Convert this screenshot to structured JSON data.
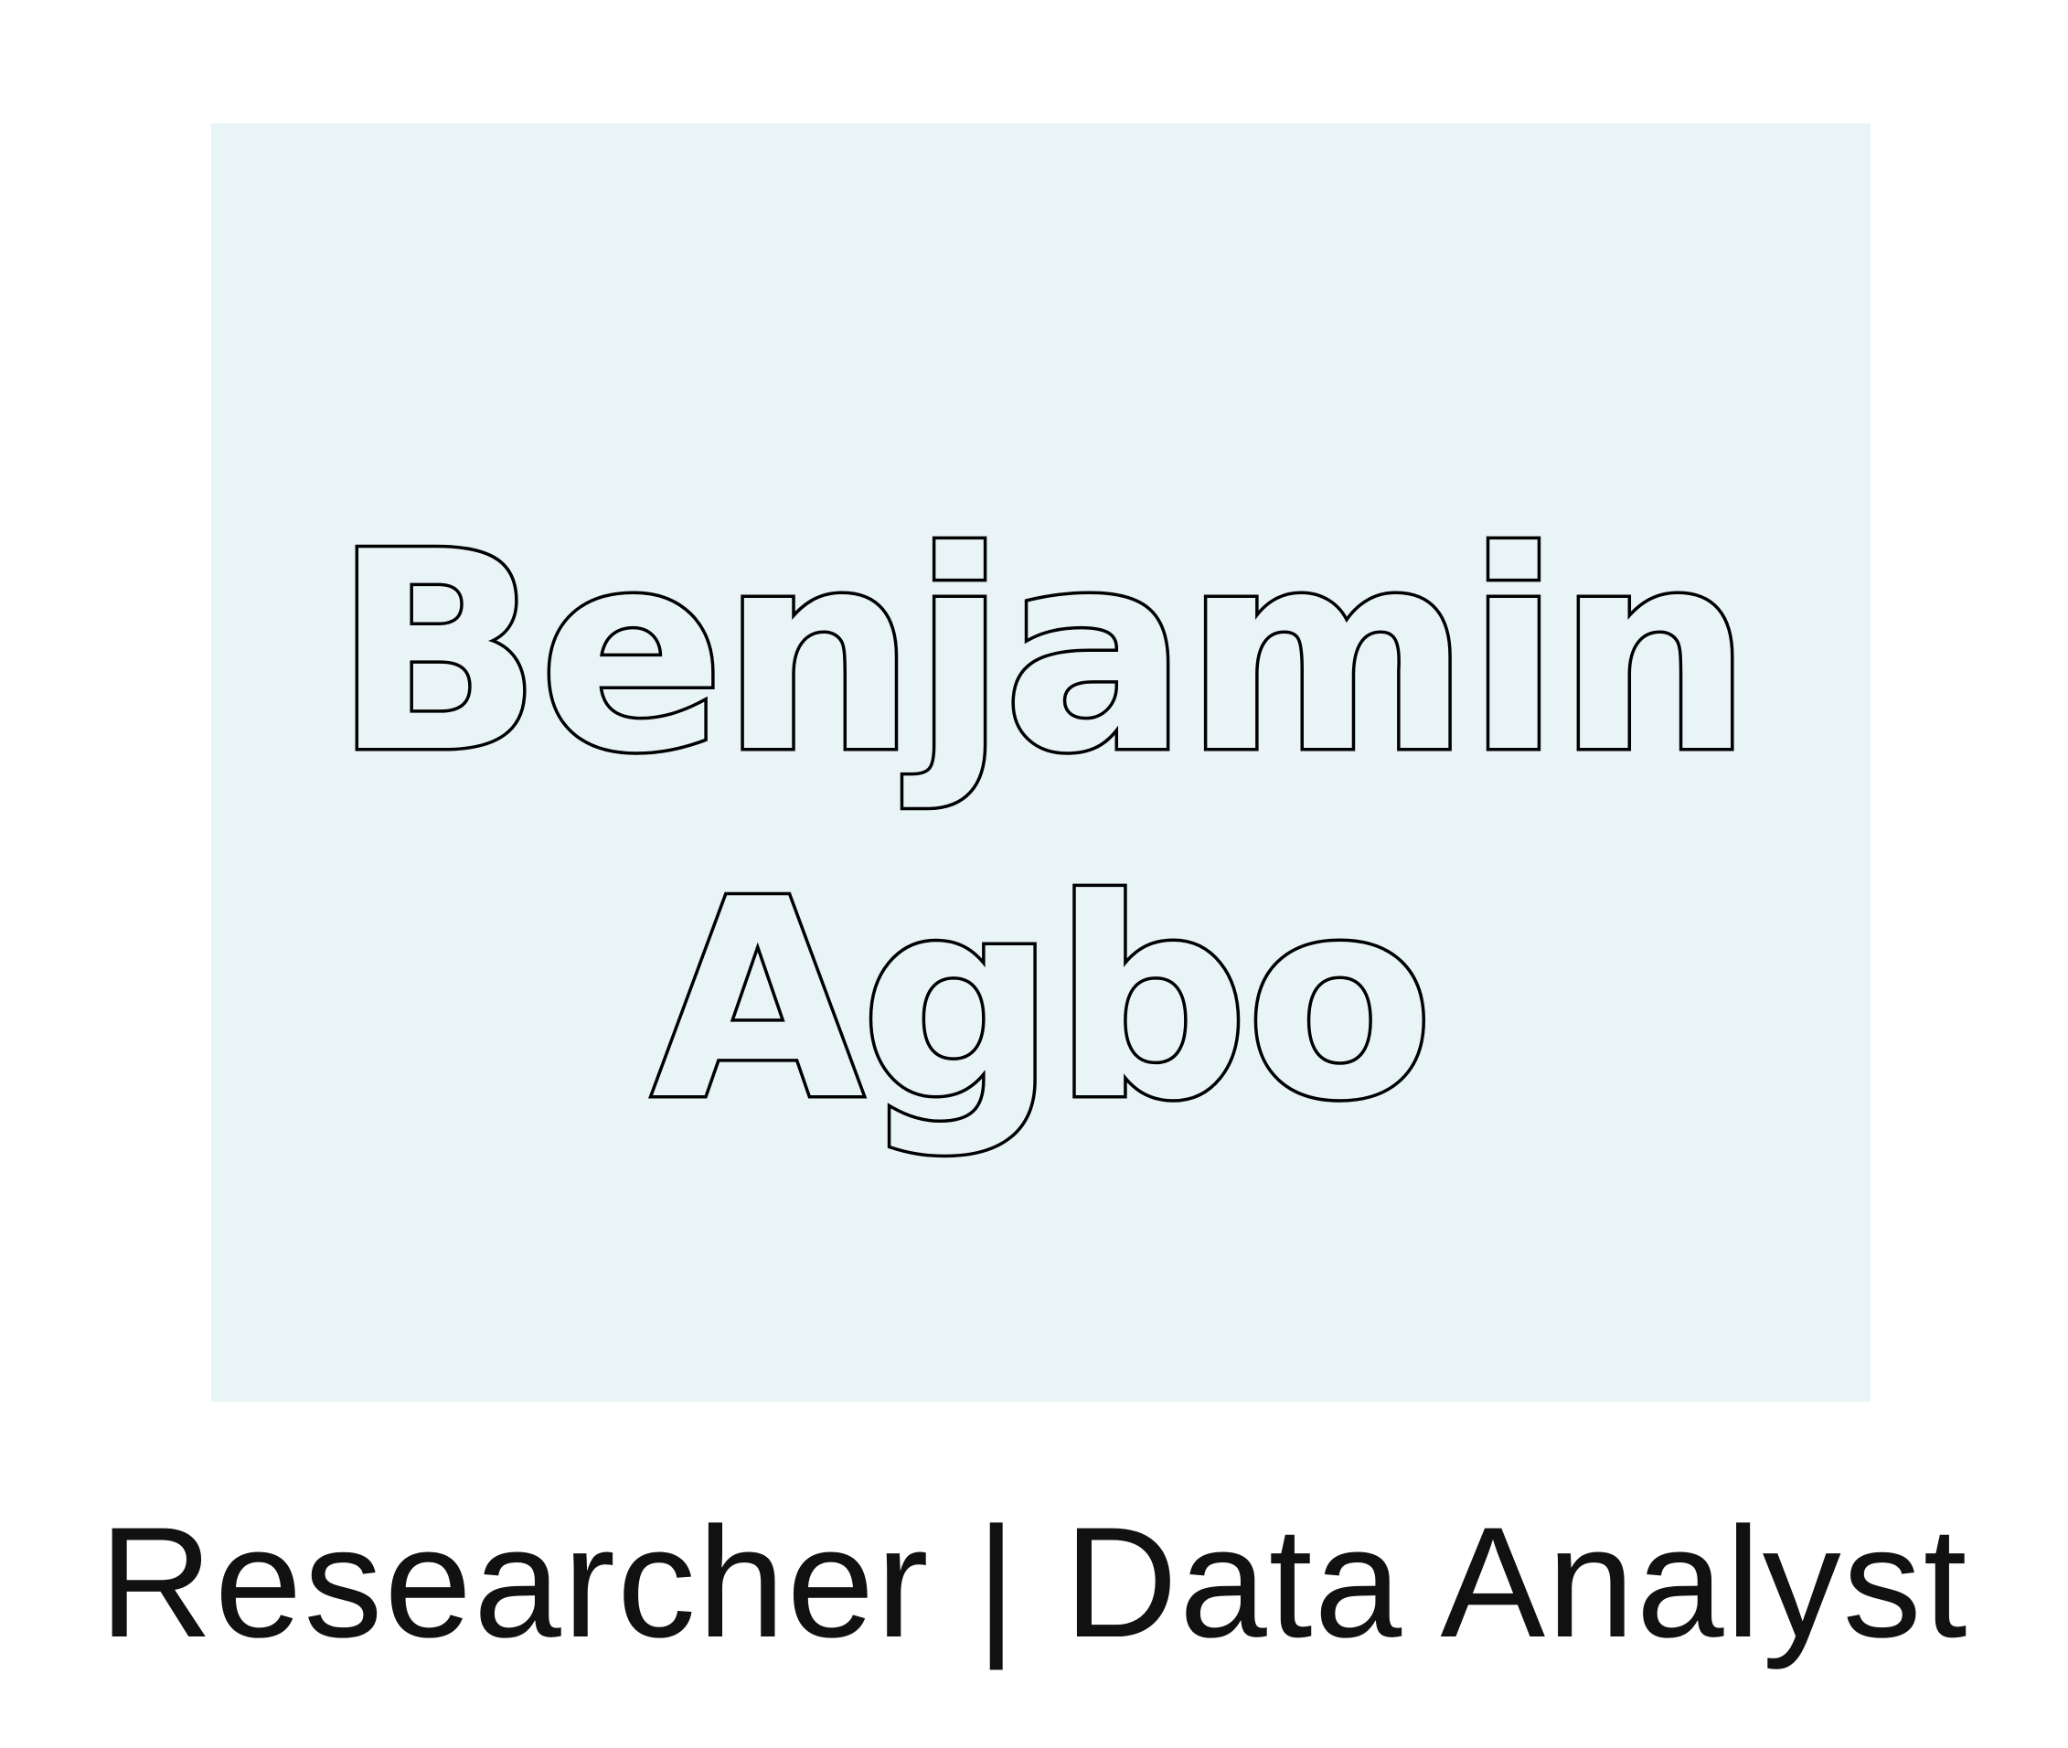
{
  "logo": {
    "first_name": "Benjamin",
    "last_name": "Agbo",
    "background_color": "#e8f4f6",
    "outline_color": "#000000"
  },
  "tagline": "Researcher | Data Analyst"
}
